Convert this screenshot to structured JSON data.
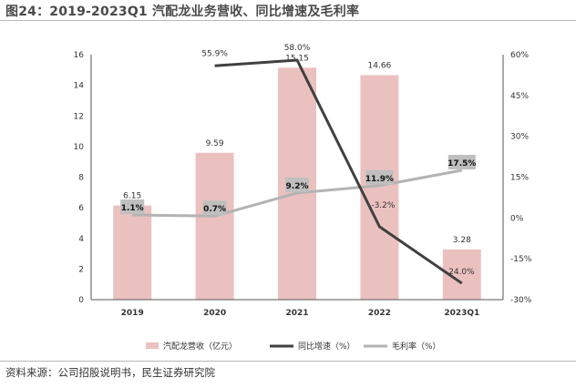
{
  "header": {
    "title": "图24：2019-2023Q1 汽配龙业务营收、同比增速及毛利率"
  },
  "footer": {
    "source": "资料来源：公司招股说明书，民生证券研究院"
  },
  "chart_data": {
    "type": "bar",
    "categories": [
      "2019",
      "2020",
      "2021",
      "2022",
      "2023Q1"
    ],
    "series": [
      {
        "name": "汽配龙营收（亿元）",
        "type": "bar",
        "axis": "left",
        "values": [
          6.15,
          9.59,
          15.15,
          14.66,
          3.28
        ],
        "labels": [
          "6.15",
          "9.59",
          "15.15",
          "14.66",
          "3.28"
        ],
        "color": "#EBC1C0"
      },
      {
        "name": "同比增速（%）",
        "type": "line",
        "axis": "right",
        "values": [
          null,
          55.9,
          58.0,
          -3.2,
          -24.0
        ],
        "labels": [
          "",
          "55.9%",
          "58.0%",
          "-3.2%",
          "-24.0%"
        ],
        "color": "#404040"
      },
      {
        "name": "毛利率（%）",
        "type": "line",
        "axis": "right",
        "values": [
          1.1,
          0.7,
          9.2,
          11.9,
          17.5
        ],
        "labels": [
          "1.1%",
          "0.7%",
          "9.2%",
          "11.9%",
          "17.5%"
        ],
        "color": "#B3B3B3"
      }
    ],
    "y_left": {
      "min": 0,
      "max": 16,
      "ticks": [
        "0",
        "2",
        "4",
        "6",
        "8",
        "10",
        "12",
        "14",
        "16"
      ]
    },
    "y_right": {
      "min": -30,
      "max": 60,
      "ticks": [
        "-30%",
        "-15%",
        "0%",
        "15%",
        "30%",
        "45%",
        "60%"
      ]
    },
    "label_box_color": "#BFBFBF",
    "legend_position": "bottom"
  }
}
